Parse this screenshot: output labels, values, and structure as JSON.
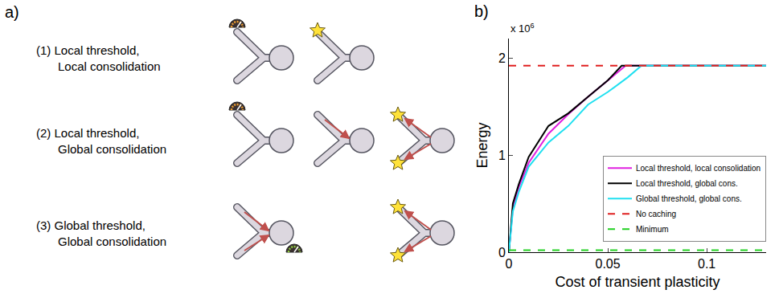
{
  "panel_a": {
    "label": "a)",
    "rows": [
      {
        "number": "(1)",
        "lines": [
          "Local threshold,",
          "Local consolidation"
        ]
      },
      {
        "number": "(2)",
        "lines": [
          "Local threshold,",
          "Global consolidation"
        ]
      },
      {
        "number": "(3)",
        "lines": [
          "Global threshold,",
          "Global consolidation"
        ]
      }
    ]
  },
  "chart_data": {
    "type": "line",
    "panel_label": "b)",
    "x_label": "Cost of transient plasticity",
    "y_label": "Energy",
    "y_multiplier": {
      "text": "x 10",
      "exponent": "6"
    },
    "xlim": [
      0,
      0.13
    ],
    "ylim": [
      0,
      2.2
    ],
    "xticks": [
      0,
      0.05,
      0.1
    ],
    "yticks": [
      0,
      1,
      2
    ],
    "grid": false,
    "legend": "lower right",
    "series": [
      {
        "name": "Local threshold, local consolidation",
        "color": "#e020e0",
        "line_style": "solid",
        "x": [
          0,
          0.002,
          0.005,
          0.01,
          0.02,
          0.03,
          0.04,
          0.05,
          0.059,
          0.13
        ],
        "values": [
          0,
          0.45,
          0.67,
          0.92,
          1.22,
          1.42,
          1.6,
          1.77,
          1.92,
          1.92
        ]
      },
      {
        "name": "Local threshold, global cons.",
        "color": "#000000",
        "line_style": "solid",
        "x": [
          0,
          0.002,
          0.005,
          0.01,
          0.02,
          0.03,
          0.04,
          0.05,
          0.057,
          0.13
        ],
        "values": [
          0,
          0.5,
          0.7,
          0.98,
          1.3,
          1.43,
          1.6,
          1.77,
          1.92,
          1.92
        ]
      },
      {
        "name": "Global threshold, global cons.",
        "color": "#20e0f0",
        "line_style": "solid",
        "x": [
          0,
          0.002,
          0.005,
          0.01,
          0.02,
          0.03,
          0.04,
          0.05,
          0.06,
          0.067,
          0.13
        ],
        "values": [
          0,
          0.42,
          0.62,
          0.88,
          1.13,
          1.3,
          1.52,
          1.65,
          1.8,
          1.92,
          1.92
        ]
      },
      {
        "name": "No caching",
        "color": "#e02020",
        "line_style": "dash",
        "x": [
          0,
          0.13
        ],
        "values": [
          1.92,
          1.92
        ]
      },
      {
        "name": "Minimum",
        "color": "#20d020",
        "line_style": "dash",
        "x": [
          0,
          0.13
        ],
        "values": [
          0.02,
          0.02
        ]
      }
    ]
  }
}
